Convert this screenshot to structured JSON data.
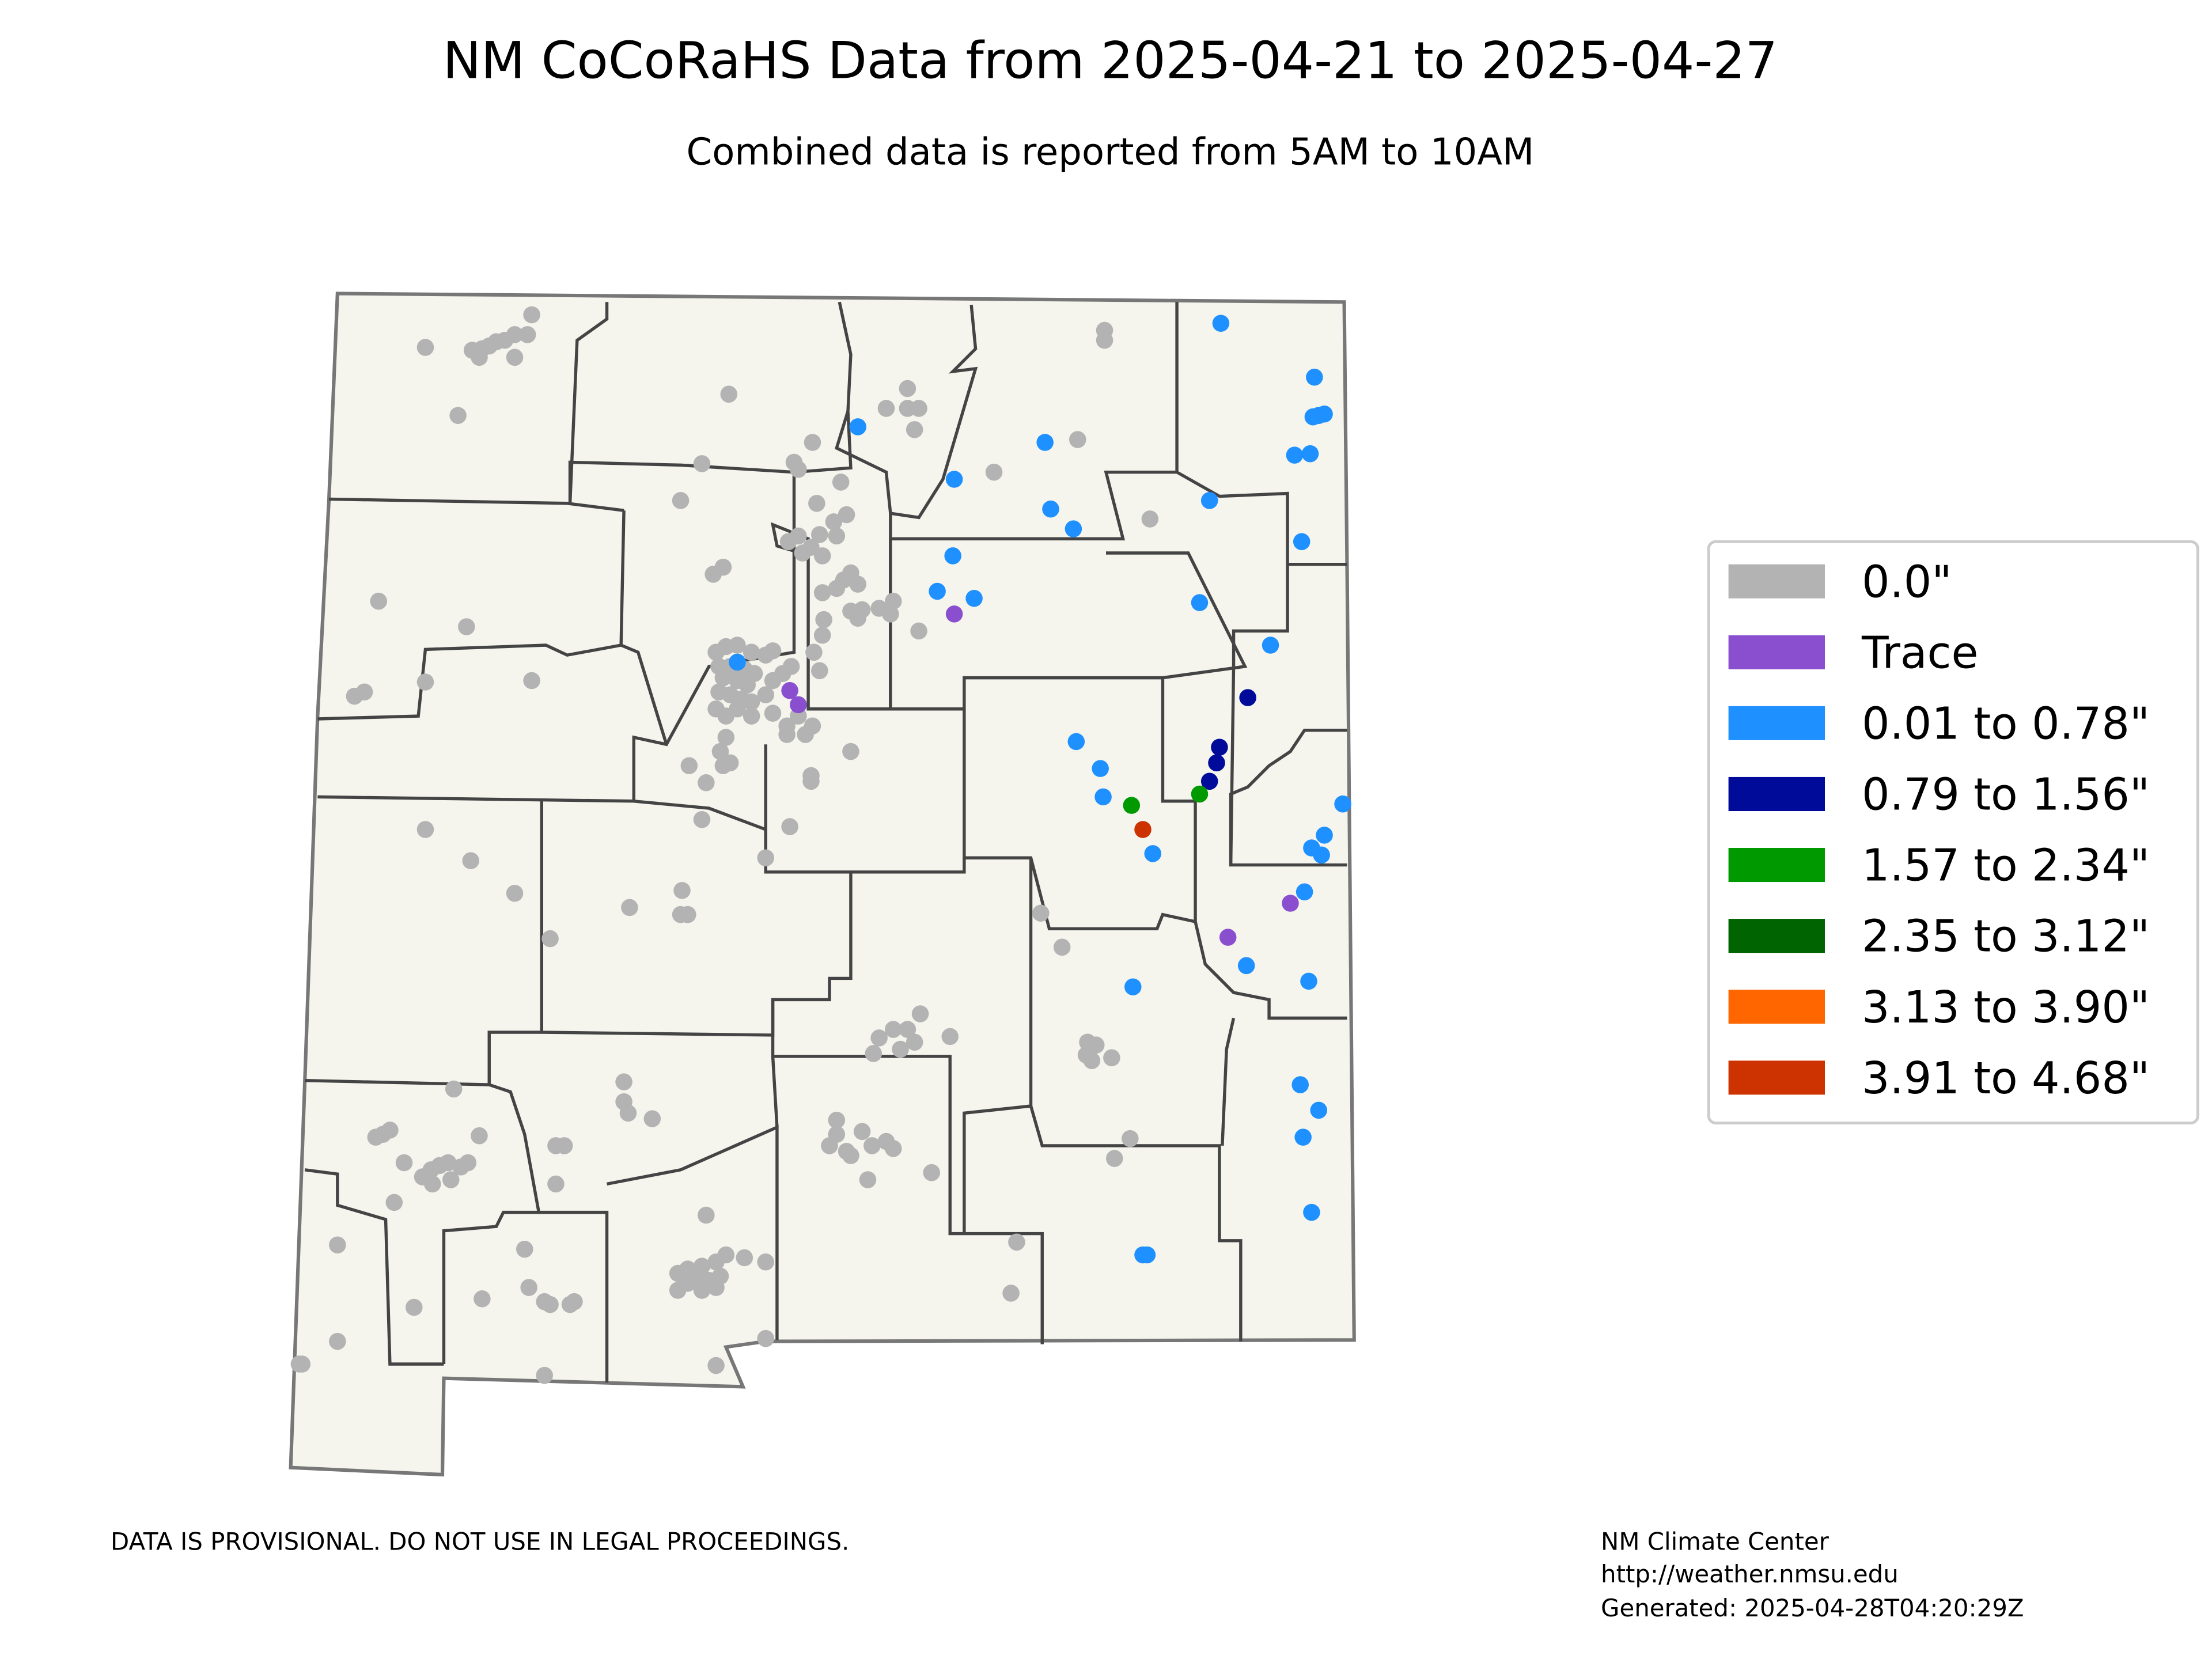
{
  "title": "NM CoCoRaHS Data from 2025-04-21 to 2025-04-27",
  "subtitle": "Combined data is reported from 5AM to 10AM",
  "legend": {
    "items": [
      {
        "label": "0.0\"",
        "color": "#b3b3b3"
      },
      {
        "label": "Trace",
        "color": "#8a4fcf"
      },
      {
        "label": "0.01 to 0.78\"",
        "color": "#1e90ff"
      },
      {
        "label": "0.79 to 1.56\"",
        "color": "#000b9a"
      },
      {
        "label": "1.57 to 2.34\"",
        "color": "#009a00"
      },
      {
        "label": "2.35 to 3.12\"",
        "color": "#006400"
      },
      {
        "label": "3.13 to 3.90\"",
        "color": "#ff6600"
      },
      {
        "label": "3.91 to 4.68\"",
        "color": "#cc3300"
      }
    ]
  },
  "footer": {
    "disclaimer": "DATA IS PROVISIONAL. DO NOT USE IN LEGAL PROCEEDINGS.",
    "credit": [
      "NM Climate Center",
      "http://weather.nmsu.edu",
      "Generated: 2025-04-28T04:20:29Z"
    ]
  }
}
